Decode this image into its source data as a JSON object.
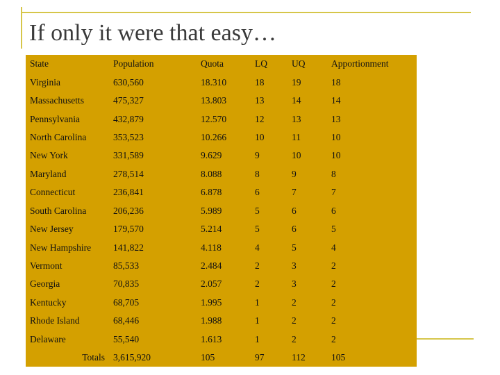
{
  "slide": {
    "title": "If only it were that easy…"
  },
  "table": {
    "headers": [
      "State",
      "Population",
      "Quota",
      "LQ",
      "UQ",
      "Apportionment"
    ],
    "rows": [
      [
        "Virginia",
        "630,560",
        "18.310",
        "18",
        "19",
        "18"
      ],
      [
        "Massachusetts",
        "475,327",
        "13.803",
        "13",
        "14",
        "14"
      ],
      [
        "Pennsylvania",
        "432,879",
        "12.570",
        "12",
        "13",
        "13"
      ],
      [
        "North Carolina",
        "353,523",
        "10.266",
        "10",
        "11",
        "10"
      ],
      [
        "New York",
        "331,589",
        "9.629",
        "9",
        "10",
        "10"
      ],
      [
        "Maryland",
        "278,514",
        "8.088",
        "8",
        "9",
        "8"
      ],
      [
        "Connecticut",
        "236,841",
        "6.878",
        "6",
        "7",
        "7"
      ],
      [
        "South Carolina",
        "206,236",
        "5.989",
        "5",
        "6",
        "6"
      ],
      [
        "New Jersey",
        "179,570",
        "5.214",
        "5",
        "6",
        "5"
      ],
      [
        "New Hampshire",
        "141,822",
        "4.118",
        "4",
        "5",
        "4"
      ],
      [
        "Vermont",
        "85,533",
        "2.484",
        "2",
        "3",
        "2"
      ],
      [
        "Georgia",
        "70,835",
        "2.057",
        "2",
        "3",
        "2"
      ],
      [
        "Kentucky",
        "68,705",
        "1.995",
        "1",
        "2",
        "2"
      ],
      [
        "Rhode Island",
        "68,446",
        "1.988",
        "1",
        "2",
        "2"
      ],
      [
        "Delaware",
        "55,540",
        "1.613",
        "1",
        "2",
        "2"
      ]
    ],
    "totals": [
      "Totals",
      "3,615,920",
      "105",
      "97",
      "112",
      "105"
    ]
  },
  "colors": {
    "table_background": "#d4a000",
    "title_text": "#3a3a3a",
    "decorative_lines": "#d6c64a",
    "slide_background": "#ffffff"
  }
}
